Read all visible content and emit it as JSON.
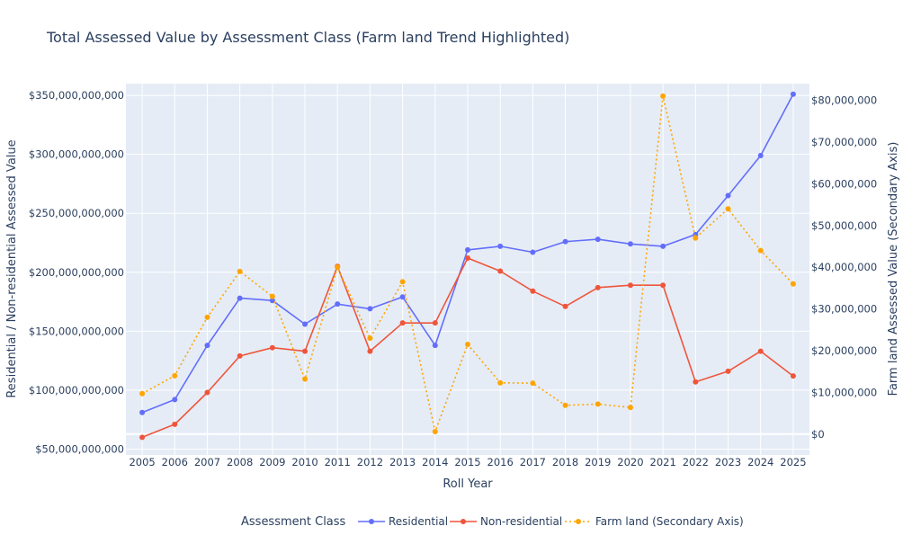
{
  "chart_data": {
    "type": "line",
    "title": "Total Assessed Value by Assessment Class (Farm land Trend Highlighted)",
    "xlabel": "Roll Year",
    "ylabel": "Residential / Non-residential Assessed Value",
    "y2label": "Farm land Assessed Value (Secondary Axis)",
    "legend_title": "Assessment Class",
    "legend_position": "bottom",
    "grid": true,
    "plot_bg": "#e5ecf6",
    "categories": [
      "2005",
      "2006",
      "2007",
      "2008",
      "2009",
      "2010",
      "2011",
      "2012",
      "2013",
      "2014",
      "2015",
      "2016",
      "2017",
      "2018",
      "2019",
      "2020",
      "2021",
      "2022",
      "2023",
      "2024",
      "2025"
    ],
    "ylim": [
      45000000000,
      360000000000
    ],
    "y2lim": [
      -5000000,
      84000000
    ],
    "y_ticks": [
      50000000000,
      100000000000,
      150000000000,
      200000000000,
      250000000000,
      300000000000,
      350000000000
    ],
    "y_tick_labels": [
      "$50,000,000,000",
      "$100,000,000,000",
      "$150,000,000,000",
      "$200,000,000,000",
      "$250,000,000,000",
      "$300,000,000,000",
      "$350,000,000,000"
    ],
    "y2_ticks": [
      0,
      10000000,
      20000000,
      30000000,
      40000000,
      50000000,
      60000000,
      70000000,
      80000000
    ],
    "y2_tick_labels": [
      "$0",
      "$10,000,000",
      "$20,000,000",
      "$30,000,000",
      "$40,000,000",
      "$50,000,000",
      "$60,000,000",
      "$70,000,000",
      "$80,000,000"
    ],
    "series": [
      {
        "name": "Residential",
        "axis": "y",
        "color": "#636efa",
        "dash": "solid",
        "values": [
          81000000000,
          92000000000,
          138000000000,
          178000000000,
          176000000000,
          156000000000,
          173000000000,
          169000000000,
          179000000000,
          138000000000,
          219000000000,
          222000000000,
          217000000000,
          226000000000,
          228000000000,
          224000000000,
          222000000000,
          232000000000,
          265000000000,
          299000000000,
          351000000000
        ]
      },
      {
        "name": "Non-residential",
        "axis": "y",
        "color": "#ef553b",
        "dash": "solid",
        "values": [
          60000000000,
          71000000000,
          98000000000,
          129000000000,
          136000000000,
          133000000000,
          205000000000,
          133000000000,
          157000000000,
          157000000000,
          212000000000,
          201000000000,
          184000000000,
          171000000000,
          187000000000,
          189000000000,
          189000000000,
          107000000000,
          116000000000,
          133000000000,
          112000000000
        ]
      },
      {
        "name": "Farm land (Secondary Axis)",
        "axis": "y2",
        "color": "#ffa500",
        "dash": "dot",
        "values": [
          9700000,
          14000000,
          28000000,
          39000000,
          33000000,
          13200000,
          40000000,
          23000000,
          36500000,
          600000,
          21500000,
          12300000,
          12200000,
          6900000,
          7200000,
          6400000,
          81000000,
          47000000,
          54000000,
          44000000,
          36000000
        ]
      }
    ]
  }
}
